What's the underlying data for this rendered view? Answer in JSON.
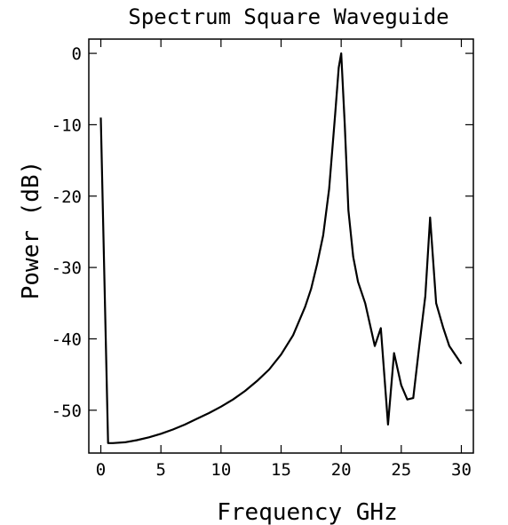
{
  "chart_data": {
    "type": "line",
    "title": "Spectrum Square Waveguide",
    "xlabel": "Frequency GHz",
    "ylabel": "Power (dB)",
    "xlim": [
      -1,
      31
    ],
    "ylim": [
      -56,
      2
    ],
    "xticks": [
      0,
      5,
      10,
      15,
      20,
      25,
      30
    ],
    "yticks": [
      0,
      -10,
      -20,
      -30,
      -40,
      -50
    ],
    "grid": false,
    "series": [
      {
        "x": [
          0.0,
          0.6,
          1.0,
          2.0,
          3.0,
          4.0,
          5.0,
          6.0,
          7.0,
          8.0,
          9.0,
          10.0,
          11.0,
          12.0,
          13.0,
          14.0,
          15.0,
          16.0,
          17.0,
          17.5,
          18.0,
          18.5,
          19.0,
          19.5,
          19.8,
          20.0,
          20.3,
          20.6,
          21.0,
          21.4,
          22.0,
          22.8,
          23.3,
          23.9,
          24.4,
          25.0,
          25.5,
          26.0,
          26.5,
          27.0,
          27.4,
          27.9,
          28.5,
          29.0,
          30.0
        ],
        "y": [
          -9,
          -54.6,
          -54.6,
          -54.5,
          -54.2,
          -53.8,
          -53.3,
          -52.7,
          -52.0,
          -51.2,
          -50.4,
          -49.5,
          -48.5,
          -47.3,
          -45.9,
          -44.3,
          -42.2,
          -39.5,
          -35.5,
          -33.0,
          -29.5,
          -25.5,
          -19.0,
          -8.5,
          -2.0,
          0.0,
          -10.0,
          -22.0,
          -28.5,
          -32.0,
          -35.0,
          -41.0,
          -38.5,
          -52.0,
          -42.0,
          -46.5,
          -48.5,
          -48.3,
          -41.0,
          -34.0,
          -23.0,
          -35.0,
          -38.5,
          -41.0,
          -43.5
        ]
      }
    ]
  }
}
